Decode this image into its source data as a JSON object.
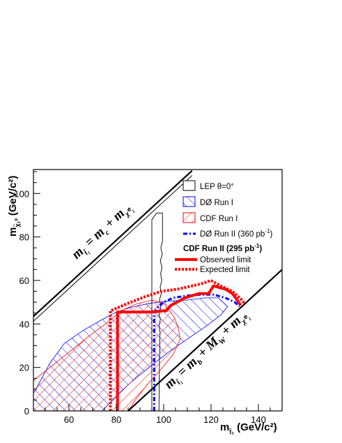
{
  "chart_data": {
    "type": "line",
    "xlabel": "m",
    "xlabel_sub": "t̃₁",
    "xlabel_unit": "(GeV/c²)",
    "ylabel": "m",
    "ylabel_sub": "χ̃₁⁰",
    "ylabel_unit": "(GeV/c²)",
    "xlim": [
      45,
      150
    ],
    "ylim": [
      0,
      111
    ],
    "xticks": [
      "60",
      "80",
      "100",
      "120",
      "140"
    ],
    "yticks": [
      "0",
      "20",
      "40",
      "60",
      "80",
      "100"
    ],
    "kinematic_lines": [
      {
        "label_main": "m",
        "label_sub": "t̃₁",
        "label_rest": "= m",
        "label_rest_sub": "c",
        "label_tail": "+ m",
        "label_tail_sub": "χ̃⁰₁",
        "points": [
          [
            45,
            43.5
          ],
          [
            112,
            110.5
          ]
        ]
      },
      {
        "label_main": "m",
        "label_sub": "t̃₁",
        "label_rest": "= m",
        "label_rest_sub": "b",
        "label_mid": "+ M",
        "label_mid_sub": "W",
        "label_tail": "+ m",
        "label_tail_sub": "χ̃⁰₁",
        "points": [
          [
            85,
            0
          ],
          [
            150,
            65
          ]
        ]
      }
    ],
    "regions": [
      {
        "name": "LEP θ=0°",
        "color": "#000000",
        "style": "outline",
        "points": [
          [
            95,
            0
          ],
          [
            95,
            88
          ],
          [
            97,
            91
          ],
          [
            99.5,
            91
          ],
          [
            99.5,
            78
          ],
          [
            98.8,
            75
          ],
          [
            99.4,
            72
          ],
          [
            98.6,
            69
          ],
          [
            99.3,
            66
          ],
          [
            98.7,
            63
          ],
          [
            99.2,
            60
          ],
          [
            98.5,
            57
          ],
          [
            99,
            54
          ],
          [
            98.2,
            51
          ],
          [
            98.8,
            48
          ],
          [
            98,
            45
          ],
          [
            98.6,
            42
          ],
          [
            98,
            39
          ],
          [
            98.5,
            36
          ],
          [
            98.3,
            32
          ],
          [
            98.4,
            28
          ],
          [
            98.2,
            24
          ],
          [
            98.2,
            20
          ],
          [
            98.1,
            10
          ],
          [
            98,
            0
          ]
        ]
      },
      {
        "name": "DØ Run I",
        "color": "#0000ff",
        "style": "hatch",
        "points": [
          [
            45,
            8
          ],
          [
            52,
            22
          ],
          [
            58,
            31
          ],
          [
            66,
            37
          ],
          [
            74,
            42
          ],
          [
            80,
            45.5
          ],
          [
            86,
            47.5
          ],
          [
            94,
            49.5
          ],
          [
            102,
            50.5
          ],
          [
            110,
            51
          ],
          [
            118,
            52
          ],
          [
            123,
            52
          ],
          [
            127,
            48
          ],
          [
            124,
            44
          ],
          [
            118,
            39
          ],
          [
            110,
            33
          ],
          [
            102,
            27
          ],
          [
            95,
            21
          ],
          [
            87,
            14
          ],
          [
            81,
            8
          ],
          [
            74,
            0
          ],
          [
            45,
            0
          ]
        ]
      },
      {
        "name": "CDF Run I",
        "color": "#ff0000",
        "style": "hatch",
        "points": [
          [
            45,
            14
          ],
          [
            52,
            20
          ],
          [
            60,
            27
          ],
          [
            68,
            34
          ],
          [
            76,
            40.5
          ],
          [
            82,
            46
          ],
          [
            88,
            49
          ],
          [
            95,
            51
          ],
          [
            100,
            49.5
          ],
          [
            104,
            44
          ],
          [
            106,
            39
          ],
          [
            107,
            33
          ],
          [
            104,
            26
          ],
          [
            98,
            18
          ],
          [
            93,
            12
          ],
          [
            88,
            5
          ],
          [
            85,
            0
          ],
          [
            45,
            0
          ]
        ]
      }
    ],
    "series": [
      {
        "name": "DØ Run II (360 pb⁻¹)",
        "color": "#0000ff",
        "style": "dashdot",
        "x": [
          96,
          96,
          97,
          100,
          104,
          110,
          116,
          121,
          126,
          130,
          132
        ],
        "y": [
          0,
          45,
          47,
          50,
          52,
          53,
          53.5,
          53.5,
          52,
          50,
          48
        ]
      },
      {
        "name": "Observed limit",
        "color": "#ff0000",
        "style": "solid",
        "x": [
          80.5,
          80.5,
          96,
          99,
          101,
          103,
          109,
          115,
          119,
          121,
          126,
          129,
          131,
          132.5
        ],
        "y": [
          0,
          45.5,
          45.5,
          46,
          46,
          48.5,
          52,
          54,
          54,
          57.5,
          56,
          54,
          51,
          48.5
        ]
      },
      {
        "name": "Expected limit",
        "color": "#ff0000",
        "style": "dotted",
        "x": [
          77.5,
          77.5,
          85,
          92,
          99,
          106,
          112,
          116,
          120,
          124,
          129,
          133,
          134
        ],
        "y": [
          0,
          46,
          49.5,
          52.5,
          55,
          56,
          57.5,
          58.5,
          60,
          57.5,
          55,
          51,
          49.5
        ]
      }
    ],
    "legend": {
      "entries": [
        {
          "label": "LEP θ=0°",
          "kind": "box",
          "color": "#000000"
        },
        {
          "label": "DØ Run I",
          "kind": "hatch",
          "color": "#0000ff"
        },
        {
          "label": "CDF Run I",
          "kind": "hatch",
          "color": "#ff0000"
        },
        {
          "label": "DØ Run II (360 pb",
          "sup": "-1",
          "tail": ")",
          "kind": "dashdot",
          "color": "#0000ff"
        }
      ],
      "cdf_title": "CDF Run II (295 pb",
      "cdf_sup": "-1",
      "cdf_tail": ")",
      "cdf_entries": [
        {
          "label": "Observed limit",
          "kind": "solid",
          "color": "#ff0000"
        },
        {
          "label": "Expected limit",
          "kind": "dotted",
          "color": "#ff0000"
        }
      ]
    }
  }
}
